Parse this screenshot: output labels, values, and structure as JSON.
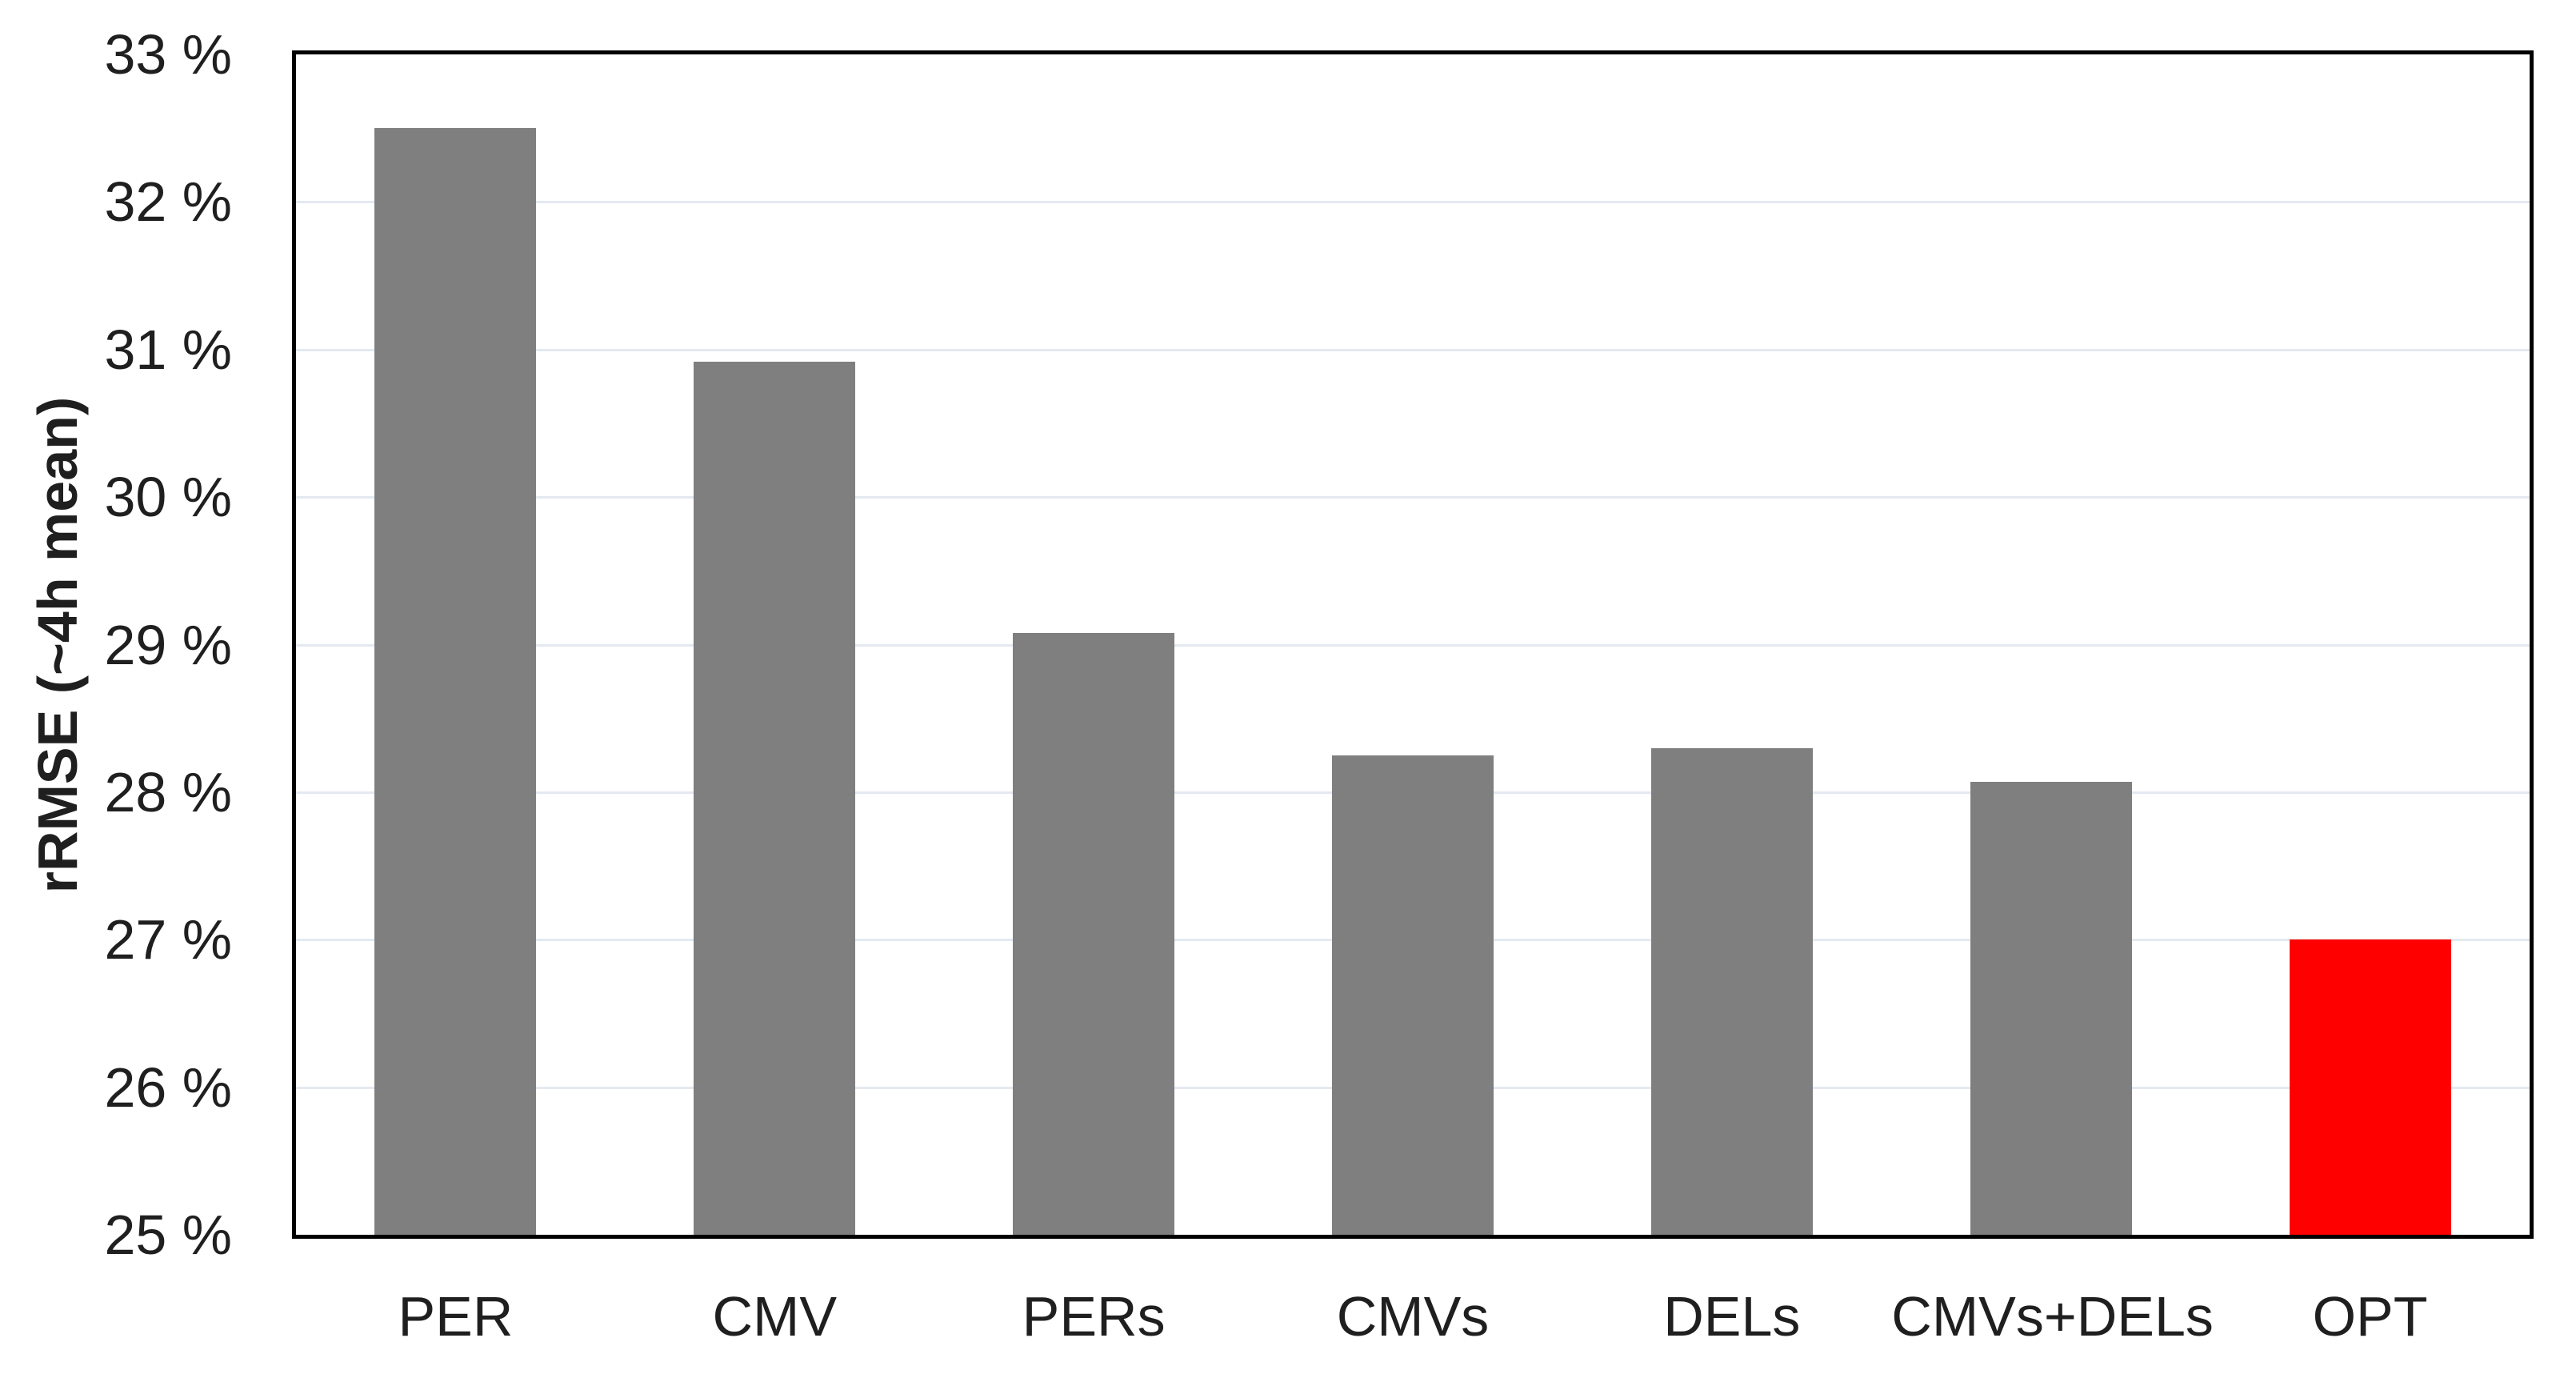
{
  "chart_data": {
    "type": "bar",
    "title": "",
    "ylabel": "rRMSE (~4h mean)",
    "xlabel": "",
    "categories": [
      "PER",
      "CMV",
      "PERs",
      "CMVs",
      "DELs",
      "CMVs+DELs",
      "OPT"
    ],
    "values": [
      32.5,
      30.92,
      29.08,
      28.25,
      28.3,
      28.07,
      27.0
    ],
    "ylim": [
      25,
      33
    ],
    "ytick_step": 1,
    "ytick_labels": [
      "25 %",
      "26 %",
      "27 %",
      "28 %",
      "29 %",
      "30 %",
      "31 %",
      "32 %",
      "33 %"
    ],
    "grid": true,
    "legend": false,
    "bar_color": "#7F7F7F",
    "highlight_index": 6,
    "highlight_color": "#FF0000",
    "gridline_color": "#E4E9F1",
    "axis_border_color": "#000000",
    "text_color": "#1F1F1F",
    "background_color": "#FFFFFF"
  }
}
